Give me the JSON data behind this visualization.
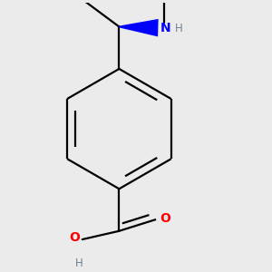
{
  "bg_color": "#ebebeb",
  "bond_color": "#000000",
  "nitrogen_color": "#0000ff",
  "oxygen_color": "#ff0000",
  "hydrogen_color": "#708090",
  "bond_width": 1.6,
  "figsize": [
    3.0,
    3.0
  ],
  "dpi": 100,
  "xlim": [
    -0.55,
    0.65
  ],
  "ylim": [
    -0.6,
    0.62
  ]
}
